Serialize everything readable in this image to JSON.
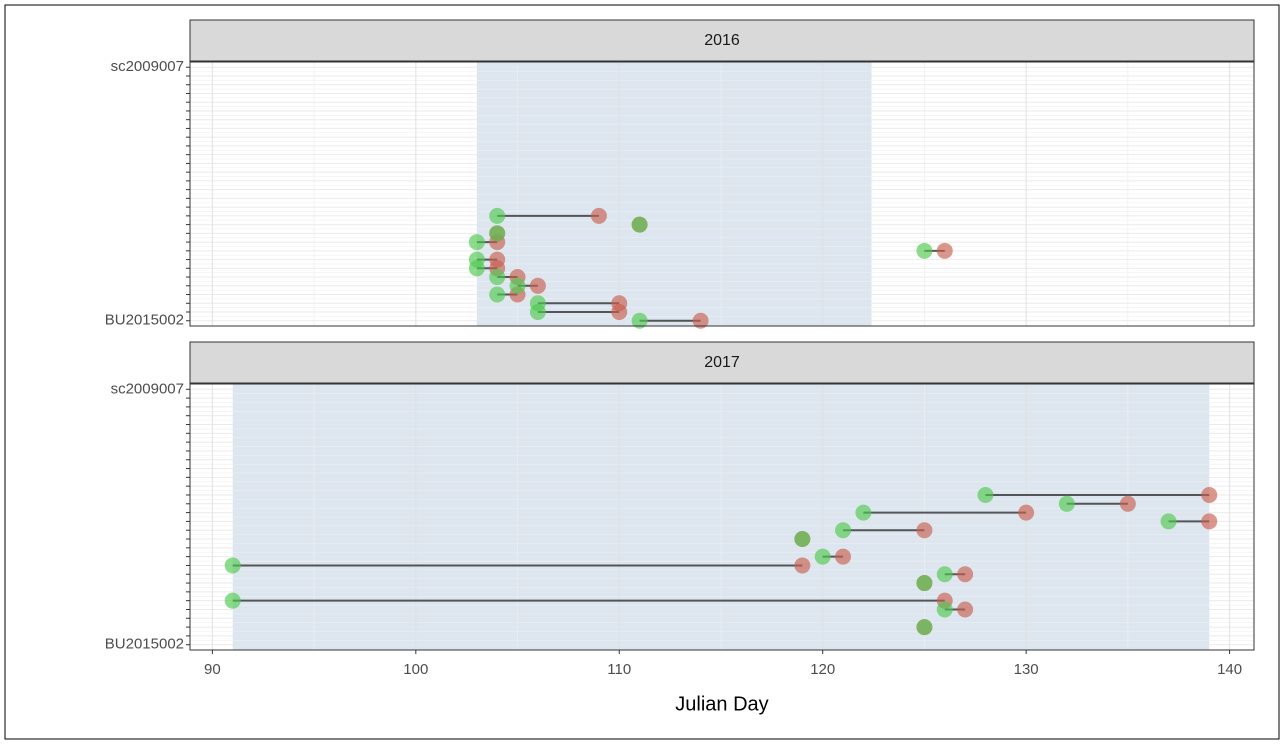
{
  "chart_data": [
    {
      "type": "dumbbell",
      "title": "2016",
      "categories": [
        "BU2015002",
        null,
        null,
        null,
        null,
        null,
        null,
        null,
        null,
        null,
        null,
        null,
        null,
        null,
        null,
        null,
        null,
        null,
        null,
        null,
        null,
        null,
        null,
        null,
        null,
        null,
        null,
        null,
        null,
        "sc2009007"
      ],
      "series": [
        {
          "color": "#c8604f",
          "values": [
            114,
            110,
            110,
            105,
            106,
            105,
            104,
            104,
            126,
            104,
            104,
            111,
            109,
            null,
            null,
            null,
            null,
            null,
            null,
            null,
            null,
            null,
            null,
            null,
            null,
            null,
            null,
            null,
            null,
            null
          ]
        },
        {
          "color": "#4fc94f",
          "values": [
            111,
            106,
            106,
            104,
            105,
            104,
            103,
            103,
            125,
            103,
            104,
            111,
            104,
            null,
            null,
            null,
            null,
            null,
            null,
            null,
            null,
            null,
            null,
            null,
            null,
            null,
            null,
            null,
            null,
            null
          ]
        }
      ],
      "band": [
        103,
        122.4
      ],
      "band_color": "#dce6f0",
      "xlim": [
        88.9,
        141.2
      ]
    },
    {
      "type": "dumbbell",
      "title": "2017",
      "categories": [
        "BU2015002",
        null,
        null,
        null,
        null,
        null,
        null,
        null,
        null,
        null,
        null,
        null,
        null,
        null,
        null,
        null,
        null,
        null,
        null,
        null,
        null,
        null,
        null,
        null,
        null,
        null,
        null,
        null,
        null,
        "sc2009007"
      ],
      "series": [
        {
          "color": "#c8604f",
          "values": [
            null,
            null,
            125,
            null,
            127,
            126,
            null,
            125,
            127,
            119,
            121,
            null,
            119,
            125,
            139,
            130,
            135,
            139,
            null,
            null,
            null,
            null,
            null,
            null,
            null,
            null,
            null,
            null,
            null,
            null
          ]
        },
        {
          "color": "#4fc94f",
          "values": [
            null,
            null,
            125,
            null,
            126,
            91,
            null,
            125,
            126,
            91,
            120,
            null,
            119,
            121,
            137,
            122,
            132,
            128,
            null,
            null,
            null,
            null,
            null,
            null,
            null,
            null,
            null,
            null,
            null,
            null
          ]
        }
      ],
      "band": [
        91,
        139
      ],
      "band_color": "#dce6f0",
      "xlim": [
        88.9,
        141.2
      ],
      "xticks": [
        90,
        100,
        110,
        120,
        130,
        140
      ],
      "xlabel": "Julian Day"
    }
  ]
}
